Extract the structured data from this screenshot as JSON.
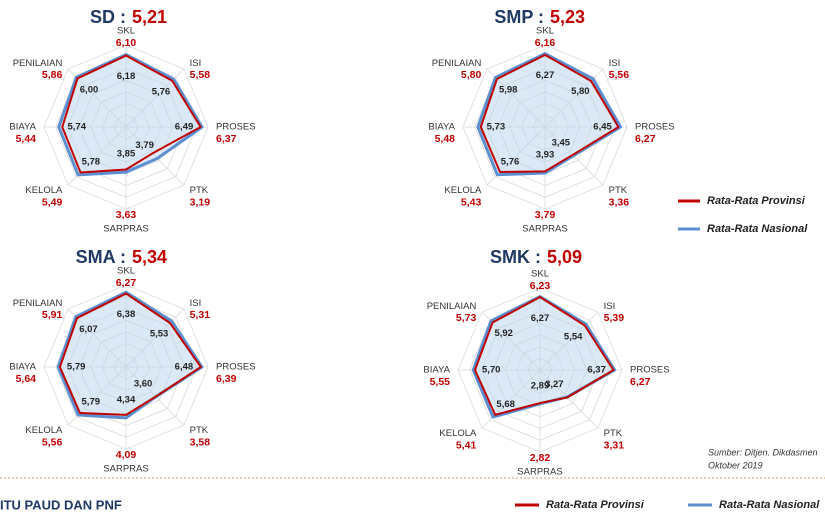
{
  "chart_data": [
    {
      "type": "radar",
      "title": "SD :",
      "score": "5,21",
      "categories": [
        "SKL",
        "ISI",
        "PROSES",
        "PTK",
        "SARPRAS",
        "KELOLA",
        "BIAYA",
        "PENILAIAN"
      ],
      "rlim": [
        0,
        7
      ],
      "rticks": [
        1,
        2,
        3,
        4,
        5,
        6,
        7
      ],
      "series": [
        {
          "name": "Rata-Rata Provinsi",
          "color": "#c00000",
          "values": [
            6.1,
            5.58,
            6.37,
            3.19,
            3.63,
            5.49,
            5.44,
            5.86
          ],
          "value_labels": [
            "6,10",
            "5,58",
            "6,37",
            "3,19",
            "3,63",
            "5,49",
            "5,44",
            "5,86"
          ]
        },
        {
          "name": "Rata-Rata Nasional",
          "color": "#5b8fd0",
          "values": [
            6.18,
            5.76,
            6.49,
            3.79,
            3.85,
            5.78,
            5.74,
            6.0
          ],
          "value_labels": [
            "6,18",
            "5,76",
            "6,49",
            "3,79",
            "3,85",
            "5,78",
            "5,74",
            "6,00"
          ]
        }
      ]
    },
    {
      "type": "radar",
      "title": "SMP :",
      "score": "5,23",
      "categories": [
        "SKL",
        "ISI",
        "PROSES",
        "PTK",
        "SARPRAS",
        "KELOLA",
        "BIAYA",
        "PENILAIAN"
      ],
      "rlim": [
        0,
        7
      ],
      "rticks": [
        1,
        2,
        3,
        4,
        5,
        6,
        7
      ],
      "series": [
        {
          "name": "Rata-Rata Provinsi",
          "color": "#c00000",
          "values": [
            6.16,
            5.56,
            6.27,
            3.36,
            3.79,
            5.43,
            5.48,
            5.8
          ],
          "value_labels": [
            "6,16",
            "5,56",
            "6,27",
            "3,36",
            "3,79",
            "5,43",
            "5,48",
            "5,80"
          ]
        },
        {
          "name": "Rata-Rata Nasional",
          "color": "#5b8fd0",
          "values": [
            6.27,
            5.8,
            6.45,
            3.45,
            3.93,
            5.76,
            5.73,
            5.98
          ],
          "value_labels": [
            "6,27",
            "5,80",
            "6,45",
            "3,45",
            "3,93",
            "5,76",
            "5,73",
            "5,98"
          ]
        }
      ]
    },
    {
      "type": "radar",
      "title": "SMA :",
      "score": "5,34",
      "categories": [
        "SKL",
        "ISI",
        "PROSES",
        "PTK",
        "SARPRAS",
        "KELOLA",
        "BIAYA",
        "PENILAIAN"
      ],
      "rlim": [
        0,
        7
      ],
      "rticks": [
        1,
        2,
        3,
        4,
        5,
        6,
        7
      ],
      "series": [
        {
          "name": "Rata-Rata Provinsi",
          "color": "#c00000",
          "values": [
            6.27,
            5.31,
            6.39,
            3.58,
            4.09,
            5.56,
            5.64,
            5.91
          ],
          "value_labels": [
            "6,27",
            "5,31",
            "6,39",
            "3,58",
            "4,09",
            "5,56",
            "5,64",
            "5,91"
          ]
        },
        {
          "name": "Rata-Rata Nasional",
          "color": "#5b8fd0",
          "values": [
            6.38,
            5.53,
            6.48,
            3.6,
            4.34,
            5.79,
            5.79,
            6.07
          ],
          "value_labels": [
            "6,38",
            "5,53",
            "6,48",
            "3,60",
            "4,34",
            "5,79",
            "5,79",
            "6,07"
          ]
        }
      ]
    },
    {
      "type": "radar",
      "title": "SMK :",
      "score": "5,09",
      "categories": [
        "SKL",
        "ISI",
        "PROSES",
        "PTK",
        "SARPRAS",
        "KELOLA",
        "BIAYA",
        "PENILAIAN"
      ],
      "rlim": [
        0,
        7
      ],
      "rticks": [
        1,
        2,
        3,
        4,
        5,
        6,
        7
      ],
      "series": [
        {
          "name": "Rata-Rata Provinsi",
          "color": "#c00000",
          "values": [
            6.23,
            5.39,
            6.27,
            3.31,
            2.82,
            5.41,
            5.55,
            5.73
          ],
          "value_labels": [
            "6,23",
            "5,39",
            "6,27",
            "3,31",
            "2,82",
            "5,41",
            "5,55",
            "5,73"
          ]
        },
        {
          "name": "Rata-Rata Nasional",
          "color": "#5b8fd0",
          "values": [
            6.27,
            5.54,
            6.37,
            3.27,
            2.89,
            5.68,
            5.7,
            5.92
          ],
          "value_labels": [
            "6,27",
            "5,54",
            "6,37",
            "3,27",
            "2,89",
            "5,68",
            "5,70",
            "5,92"
          ]
        }
      ]
    }
  ],
  "source": [
    "Sumber: Ditjen. Dikdasmen",
    "Oktober 2019"
  ],
  "section_heading": "ITU PAUD DAN PNF"
}
